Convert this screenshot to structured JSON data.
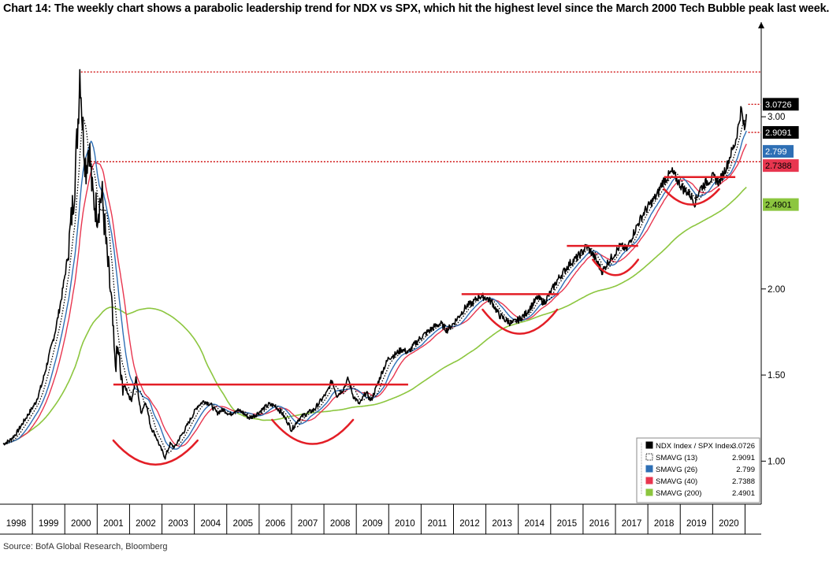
{
  "title": "Chart 14: The weekly chart shows a parabolic leadership trend for NDX vs SPX, which hit the highest level since the March 2000 Tech Bubble peak last week.",
  "source": "Source: BofA Global Research, Bloomberg",
  "colors": {
    "price": "#000000",
    "sma13": "#000000",
    "sma26": "#2e6fb5",
    "sma40": "#e8364f",
    "sma200": "#8cc63f",
    "annotation_red": "#e31e26",
    "resistance_dotted": "#cc0000"
  },
  "chart_data": {
    "type": "line",
    "title": "",
    "xlabel": "",
    "ylabel": "",
    "ylim": [
      0.75,
      3.55
    ],
    "y_ticks": [
      {
        "value": 1.0,
        "label": "1.00"
      },
      {
        "value": 1.5,
        "label": "1.50"
      },
      {
        "value": 2.0,
        "label": "2.00"
      },
      {
        "value": 3.0,
        "label": "3.00"
      }
    ],
    "xlim": [
      1997.5,
      2021.0
    ],
    "x_ticks": [
      {
        "value": 1998,
        "label": "1998"
      },
      {
        "value": 1999,
        "label": "1999"
      },
      {
        "value": 2000,
        "label": "2000"
      },
      {
        "value": 2001,
        "label": "2001"
      },
      {
        "value": 2002,
        "label": "2002"
      },
      {
        "value": 2003,
        "label": "2003"
      },
      {
        "value": 2004,
        "label": "2004"
      },
      {
        "value": 2005,
        "label": "2005"
      },
      {
        "value": 2006,
        "label": "2006"
      },
      {
        "value": 2007,
        "label": "2007"
      },
      {
        "value": 2008,
        "label": "2008"
      },
      {
        "value": 2009,
        "label": "2009"
      },
      {
        "value": 2010,
        "label": "2010"
      },
      {
        "value": 2011,
        "label": "2011"
      },
      {
        "value": 2012,
        "label": "2012"
      },
      {
        "value": 2013,
        "label": "2013"
      },
      {
        "value": 2014,
        "label": "2014"
      },
      {
        "value": 2015,
        "label": "2015"
      },
      {
        "value": 2016,
        "label": "2016"
      },
      {
        "value": 2017,
        "label": "2017"
      },
      {
        "value": 2018,
        "label": "2018"
      },
      {
        "value": 2019,
        "label": "2019"
      },
      {
        "value": 2020,
        "label": "2020"
      }
    ],
    "legend_position": "bottom-right",
    "series": [
      {
        "name": "NDX Index / SPX Index",
        "last_value": "3.0726",
        "key": "price",
        "style": "solid",
        "points": [
          [
            1997.6,
            1.1
          ],
          [
            1997.8,
            1.12
          ],
          [
            1998.0,
            1.16
          ],
          [
            1998.2,
            1.22
          ],
          [
            1998.4,
            1.28
          ],
          [
            1998.6,
            1.34
          ],
          [
            1998.8,
            1.45
          ],
          [
            1999.0,
            1.6
          ],
          [
            1999.2,
            1.75
          ],
          [
            1999.4,
            1.95
          ],
          [
            1999.6,
            2.2
          ],
          [
            1999.8,
            2.6
          ],
          [
            1999.9,
            2.95
          ],
          [
            1999.97,
            3.3
          ],
          [
            2000.05,
            2.95
          ],
          [
            2000.15,
            2.7
          ],
          [
            2000.25,
            2.85
          ],
          [
            2000.35,
            2.55
          ],
          [
            2000.5,
            2.45
          ],
          [
            2000.65,
            2.55
          ],
          [
            2000.8,
            2.2
          ],
          [
            2000.95,
            1.9
          ],
          [
            2001.05,
            1.55
          ],
          [
            2001.15,
            1.65
          ],
          [
            2001.25,
            1.45
          ],
          [
            2001.4,
            1.42
          ],
          [
            2001.55,
            1.35
          ],
          [
            2001.7,
            1.48
          ],
          [
            2001.85,
            1.28
          ],
          [
            2002.0,
            1.35
          ],
          [
            2002.15,
            1.2
          ],
          [
            2002.3,
            1.15
          ],
          [
            2002.45,
            1.08
          ],
          [
            2002.6,
            1.02
          ],
          [
            2002.75,
            1.1
          ],
          [
            2002.9,
            1.08
          ],
          [
            2003.0,
            1.12
          ],
          [
            2003.2,
            1.18
          ],
          [
            2003.4,
            1.25
          ],
          [
            2003.6,
            1.32
          ],
          [
            2003.8,
            1.35
          ],
          [
            2004.0,
            1.33
          ],
          [
            2004.2,
            1.28
          ],
          [
            2004.4,
            1.3
          ],
          [
            2004.6,
            1.27
          ],
          [
            2004.8,
            1.3
          ],
          [
            2005.0,
            1.28
          ],
          [
            2005.2,
            1.25
          ],
          [
            2005.4,
            1.27
          ],
          [
            2005.6,
            1.3
          ],
          [
            2005.8,
            1.33
          ],
          [
            2006.0,
            1.32
          ],
          [
            2006.2,
            1.28
          ],
          [
            2006.4,
            1.22
          ],
          [
            2006.5,
            1.18
          ],
          [
            2006.7,
            1.24
          ],
          [
            2006.9,
            1.27
          ],
          [
            2007.0,
            1.28
          ],
          [
            2007.2,
            1.3
          ],
          [
            2007.4,
            1.35
          ],
          [
            2007.6,
            1.4
          ],
          [
            2007.75,
            1.47
          ],
          [
            2007.9,
            1.38
          ],
          [
            2008.1,
            1.42
          ],
          [
            2008.25,
            1.48
          ],
          [
            2008.4,
            1.38
          ],
          [
            2008.6,
            1.33
          ],
          [
            2008.8,
            1.4
          ],
          [
            2008.95,
            1.35
          ],
          [
            2009.1,
            1.42
          ],
          [
            2009.3,
            1.52
          ],
          [
            2009.5,
            1.6
          ],
          [
            2009.7,
            1.62
          ],
          [
            2009.9,
            1.65
          ],
          [
            2010.1,
            1.63
          ],
          [
            2010.3,
            1.68
          ],
          [
            2010.5,
            1.72
          ],
          [
            2010.7,
            1.75
          ],
          [
            2010.9,
            1.78
          ],
          [
            2011.1,
            1.8
          ],
          [
            2011.3,
            1.76
          ],
          [
            2011.5,
            1.8
          ],
          [
            2011.7,
            1.85
          ],
          [
            2011.9,
            1.9
          ],
          [
            2012.1,
            1.92
          ],
          [
            2012.3,
            1.96
          ],
          [
            2012.5,
            1.95
          ],
          [
            2012.7,
            1.92
          ],
          [
            2012.9,
            1.85
          ],
          [
            2013.1,
            1.82
          ],
          [
            2013.3,
            1.8
          ],
          [
            2013.5,
            1.82
          ],
          [
            2013.7,
            1.85
          ],
          [
            2013.9,
            1.9
          ],
          [
            2014.1,
            1.95
          ],
          [
            2014.3,
            1.92
          ],
          [
            2014.5,
            1.98
          ],
          [
            2014.7,
            2.05
          ],
          [
            2014.9,
            2.1
          ],
          [
            2015.1,
            2.15
          ],
          [
            2015.3,
            2.18
          ],
          [
            2015.5,
            2.22
          ],
          [
            2015.6,
            2.25
          ],
          [
            2015.8,
            2.2
          ],
          [
            2015.95,
            2.15
          ],
          [
            2016.1,
            2.1
          ],
          [
            2016.25,
            2.15
          ],
          [
            2016.45,
            2.2
          ],
          [
            2016.65,
            2.25
          ],
          [
            2016.85,
            2.23
          ],
          [
            2017.0,
            2.3
          ],
          [
            2017.2,
            2.38
          ],
          [
            2017.4,
            2.45
          ],
          [
            2017.6,
            2.5
          ],
          [
            2017.8,
            2.55
          ],
          [
            2017.95,
            2.62
          ],
          [
            2018.1,
            2.65
          ],
          [
            2018.25,
            2.68
          ],
          [
            2018.45,
            2.62
          ],
          [
            2018.6,
            2.58
          ],
          [
            2018.8,
            2.55
          ],
          [
            2018.95,
            2.5
          ],
          [
            2019.1,
            2.58
          ],
          [
            2019.3,
            2.62
          ],
          [
            2019.5,
            2.65
          ],
          [
            2019.7,
            2.62
          ],
          [
            2019.85,
            2.68
          ],
          [
            2019.95,
            2.72
          ],
          [
            2020.05,
            2.78
          ],
          [
            2020.2,
            2.85
          ],
          [
            2020.3,
            2.95
          ],
          [
            2020.38,
            3.05
          ],
          [
            2020.44,
            2.97
          ],
          [
            2020.5,
            2.92
          ],
          [
            2020.56,
            3.07
          ]
        ]
      },
      {
        "name": "SMAVG (13)",
        "last_value": "2.9091",
        "key": "sma13",
        "style": "dotted",
        "window": 0.25
      },
      {
        "name": "SMAVG (26)",
        "last_value": "2.799",
        "key": "sma26",
        "style": "solid",
        "window": 0.5
      },
      {
        "name": "SMAVG (40)",
        "last_value": "2.7388",
        "key": "sma40",
        "style": "solid",
        "window": 0.77
      },
      {
        "name": "SMAVG (200)",
        "last_value": "2.4901",
        "key": "sma200",
        "style": "solid",
        "window": 3.85
      }
    ],
    "value_tags": [
      {
        "label": "3.0726",
        "value": 3.0726,
        "bg": "#000000",
        "fg": "#ffffff"
      },
      {
        "label": "2.9091",
        "value": 2.9091,
        "bg": "#000000",
        "fg": "#ffffff"
      },
      {
        "label": "2.799",
        "value": 2.799,
        "bg": "#2e6fb5",
        "fg": "#ffffff"
      },
      {
        "label": "2.7388",
        "value": 2.7388,
        "bg": "#e8364f",
        "fg": "#000000"
      },
      {
        "label": "2.4901",
        "value": 2.4901,
        "bg": "#8cc63f",
        "fg": "#000000"
      }
    ],
    "annotations": {
      "dotted_resistance_levels": [
        {
          "value": 3.26,
          "x_start": 2000.0,
          "x_end": 2021.0
        },
        {
          "value": 2.7388,
          "x_start": 2000.1,
          "x_end": 2021.0
        },
        {
          "value": 3.0726,
          "x_start": 2020.6,
          "x_end": 2021.0
        },
        {
          "value": 2.9091,
          "x_start": 2020.6,
          "x_end": 2021.0
        }
      ],
      "horizontal_resistance_lines": [
        {
          "value": 1.445,
          "x_start": 2001.0,
          "x_end": 2010.1
        },
        {
          "value": 1.97,
          "x_start": 2011.75,
          "x_end": 2014.75
        },
        {
          "value": 2.25,
          "x_start": 2015.0,
          "x_end": 2017.2
        },
        {
          "value": 2.65,
          "x_start": 2018.0,
          "x_end": 2020.2
        }
      ],
      "cup_arcs": [
        {
          "x_start": 2001.0,
          "x_end": 2003.6,
          "y_top": 1.12,
          "y_bottom": 0.98
        },
        {
          "x_start": 2005.9,
          "x_end": 2008.4,
          "y_top": 1.24,
          "y_bottom": 1.1
        },
        {
          "x_start": 2012.4,
          "x_end": 2014.7,
          "y_top": 1.88,
          "y_bottom": 1.74
        },
        {
          "x_start": 2015.8,
          "x_end": 2017.2,
          "y_top": 2.17,
          "y_bottom": 2.08
        },
        {
          "x_start": 2018.0,
          "x_end": 2019.7,
          "y_top": 2.58,
          "y_bottom": 2.49
        }
      ]
    }
  }
}
